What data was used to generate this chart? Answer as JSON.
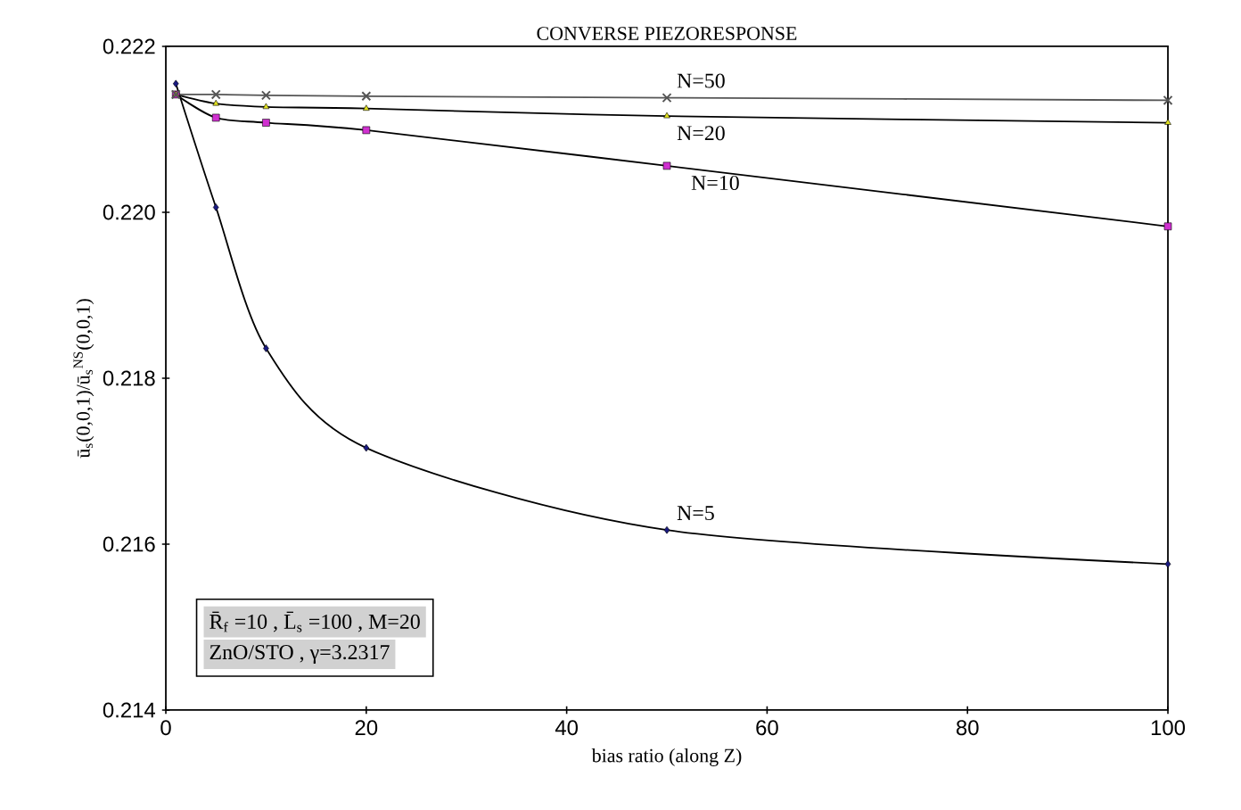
{
  "chart_data": {
    "type": "line",
    "title": "CONVERSE PIEZORESPONSE",
    "xlabel": "bias ratio (along Z)",
    "ylabel": "ū$_{s}$(0,0,1)/ū$_{s}$$^{NS}$(0,0,1)",
    "x": [
      1,
      5,
      10,
      20,
      50,
      100
    ],
    "series": [
      {
        "name": "N=5",
        "color": "#1a1a80",
        "marker": "diamond",
        "values": [
          0.22155,
          0.22006,
          0.21836,
          0.21716,
          0.21617,
          0.21576
        ]
      },
      {
        "name": "N=10",
        "color": "#d030d0",
        "marker": "square",
        "values": [
          0.22142,
          0.22114,
          0.22108,
          0.22099,
          0.22056,
          0.21983
        ]
      },
      {
        "name": "N=20",
        "color": "#e0e020",
        "marker": "triangle",
        "values": [
          0.22142,
          0.22131,
          0.22127,
          0.22125,
          0.22116,
          0.22108
        ]
      },
      {
        "name": "N=50",
        "color": "#555555",
        "marker": "cross",
        "values": [
          0.22142,
          0.22142,
          0.22141,
          0.2214,
          0.22138,
          0.22135
        ]
      }
    ],
    "xlim": [
      0,
      100
    ],
    "xticks": [
      0,
      20,
      40,
      60,
      80,
      100
    ],
    "ylim": [
      0.214,
      0.222
    ],
    "yticks": [
      0.214,
      0.216,
      0.218,
      {
        "value": 0.22,
        "label": "0.220"
      },
      0.222
    ],
    "annotations": [
      "R̄$_{f}$ =10   ,   L̄$_{s}$ =100   ,   M=20",
      "ZnO/STO   ,   γ=3.2317"
    ],
    "legend": false,
    "grid": false,
    "line_style": "solid"
  }
}
